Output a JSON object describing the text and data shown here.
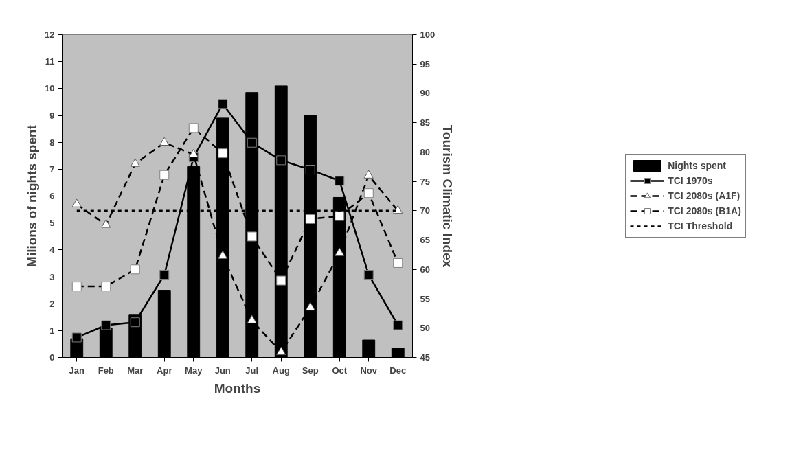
{
  "chart_data": {
    "type": "line",
    "xlabel": "Months",
    "ylabel": "Milions of nights spent",
    "y2label": "Tourism Climatic Index",
    "categories": [
      "Jan",
      "Feb",
      "Mar",
      "Apr",
      "May",
      "Jun",
      "Jul",
      "Aug",
      "Sep",
      "Oct",
      "Nov",
      "Dec"
    ],
    "ylim": [
      0,
      12
    ],
    "yticks": [
      0,
      1,
      2,
      3,
      4,
      5,
      6,
      7,
      8,
      9,
      10,
      11,
      12
    ],
    "y2lim": [
      45,
      100
    ],
    "y2ticks": [
      45,
      50,
      55,
      60,
      65,
      70,
      75,
      80,
      85,
      90,
      95,
      100
    ],
    "grid": false,
    "legend": "right",
    "series": [
      {
        "name": "Nights spent",
        "type": "bar",
        "color": "#000000",
        "values": [
          0.7,
          1.1,
          1.6,
          2.5,
          7.1,
          8.9,
          9.85,
          10.1,
          9.0,
          5.95,
          0.65,
          0.35
        ]
      },
      {
        "name": "TCI 1970s",
        "axis": "y2",
        "color": "#000000",
        "marker": "square",
        "line_style": "solid",
        "values": [
          48.4,
          50.5,
          51.0,
          59.1,
          79.1,
          88.2,
          81.6,
          78.6,
          77.0,
          75.1,
          59.1,
          50.5
        ]
      },
      {
        "name": "TCI 2080s (A1F)",
        "axis": "y2",
        "color": "#000000",
        "marker": "triangle",
        "line_style": "dashed",
        "values": [
          71.1,
          67.6,
          78.0,
          81.6,
          79.6,
          62.3,
          51.3,
          45.9,
          53.5,
          62.8,
          76.0,
          70.0
        ]
      },
      {
        "name": "TCI 2080s (B1A)",
        "axis": "y2",
        "color": "#000000",
        "marker": "square",
        "line_style": "dashed",
        "values": [
          57.1,
          57.1,
          60.0,
          76.1,
          84.1,
          79.8,
          65.6,
          58.1,
          68.6,
          69.1,
          73.0,
          61.1
        ]
      }
    ],
    "ref_lines": [
      {
        "axis": "y2",
        "value": 70,
        "label": "TCI Threshold",
        "color": "#000000",
        "line_style": "dotted"
      }
    ]
  }
}
